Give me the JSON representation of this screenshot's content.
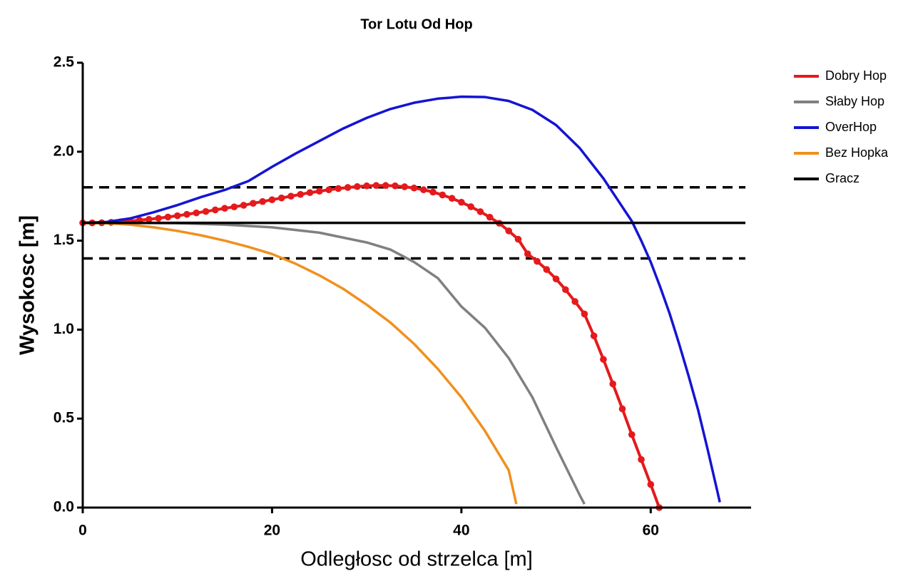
{
  "chart_data": {
    "type": "line",
    "title": "Tor Lotu Od Hop",
    "x_label": "Odległosc od strzelca [m]",
    "y_label": "Wysokosc [m]",
    "xlim": [
      0,
      70
    ],
    "ylim": [
      0,
      2.5
    ],
    "xticks": [
      0,
      20,
      40,
      60
    ],
    "yticks": [
      {
        "value": 0,
        "label": "0.0"
      },
      0.5,
      {
        "value": 1,
        "label": "1.0"
      },
      1.5,
      {
        "value": 2,
        "label": "2.0"
      },
      2.5
    ],
    "legend": "right",
    "reference_lines": [
      {
        "value": 1.8,
        "color": "#000000",
        "dashed": true
      },
      {
        "value": 1.4,
        "color": "#000000",
        "dashed": true
      }
    ],
    "series": [
      {
        "name": "Dobry Hop",
        "color": "#e41a1c",
        "markers": true,
        "x": [
          0,
          1,
          2,
          3,
          4,
          5,
          6,
          7,
          8,
          9,
          10,
          11,
          12,
          13,
          14,
          15,
          16,
          17,
          18,
          19,
          20,
          21,
          22,
          23,
          24,
          25,
          26,
          27,
          28,
          29,
          30,
          31,
          32,
          33,
          34,
          35,
          36,
          37,
          38,
          39,
          40,
          41,
          42,
          43,
          44,
          45,
          46,
          47,
          48,
          49,
          50,
          51,
          52,
          53,
          54,
          55,
          56,
          57,
          58,
          59,
          60,
          60.9
        ],
        "values": [
          1.6,
          1.6,
          1.601,
          1.603,
          1.606,
          1.61,
          1.615,
          1.62,
          1.626,
          1.633,
          1.64,
          1.648,
          1.656,
          1.664,
          1.673,
          1.682,
          1.69,
          1.699,
          1.71,
          1.72,
          1.73,
          1.74,
          1.75,
          1.76,
          1.77,
          1.778,
          1.786,
          1.793,
          1.799,
          1.804,
          1.808,
          1.81,
          1.81,
          1.808,
          1.803,
          1.796,
          1.786,
          1.773,
          1.757,
          1.738,
          1.716,
          1.691,
          1.663,
          1.632,
          1.598,
          1.555,
          1.508,
          1.426,
          1.384,
          1.338,
          1.285,
          1.225,
          1.158,
          1.088,
          0.965,
          0.833,
          0.695,
          0.555,
          0.41,
          0.27,
          0.13,
          0
        ]
      },
      {
        "name": "Słaby Hop",
        "color": "#808080",
        "markers": false,
        "x": [
          0,
          5,
          10,
          15,
          20,
          25,
          30,
          32.5,
          35,
          37.5,
          40,
          42.5,
          45,
          47.5,
          50,
          52.5,
          53
        ],
        "values": [
          1.6,
          1.6,
          1.598,
          1.59,
          1.575,
          1.545,
          1.49,
          1.45,
          1.38,
          1.29,
          1.13,
          1.01,
          0.84,
          0.62,
          0.34,
          0.07,
          0.02
        ]
      },
      {
        "name": "OverHop",
        "color": "#1414d2",
        "markers": false,
        "x": [
          0,
          2.5,
          5,
          7.5,
          10,
          12.5,
          15,
          17.5,
          20,
          22.5,
          25,
          27.5,
          30,
          32.5,
          35,
          37.5,
          40,
          42.5,
          45,
          47.5,
          50,
          52.5,
          55,
          56,
          57,
          58,
          59,
          60,
          61,
          62,
          63,
          64,
          65,
          66,
          67,
          67.3
        ],
        "values": [
          1.6,
          1.605,
          1.625,
          1.66,
          1.7,
          1.745,
          1.785,
          1.835,
          1.915,
          1.99,
          2.06,
          2.13,
          2.19,
          2.24,
          2.275,
          2.298,
          2.309,
          2.307,
          2.285,
          2.235,
          2.15,
          2.02,
          1.85,
          1.77,
          1.69,
          1.61,
          1.5,
          1.38,
          1.24,
          1.09,
          0.92,
          0.74,
          0.55,
          0.33,
          0.1,
          0.03
        ]
      },
      {
        "name": "Bez Hopka",
        "color": "#f0901e",
        "markers": false,
        "x": [
          0,
          2.5,
          5,
          7.5,
          10,
          12.5,
          15,
          17.5,
          20,
          22.5,
          25,
          27.5,
          30,
          32.5,
          35,
          37.5,
          40,
          42.5,
          45,
          45.8
        ],
        "values": [
          1.6,
          1.598,
          1.59,
          1.575,
          1.555,
          1.53,
          1.5,
          1.465,
          1.425,
          1.37,
          1.305,
          1.23,
          1.14,
          1.04,
          0.92,
          0.78,
          0.62,
          0.43,
          0.21,
          0.02
        ]
      },
      {
        "name": "Gracz",
        "color": "#000000",
        "markers": false,
        "x": [
          0,
          70
        ],
        "values": [
          1.6,
          1.6
        ]
      }
    ]
  }
}
